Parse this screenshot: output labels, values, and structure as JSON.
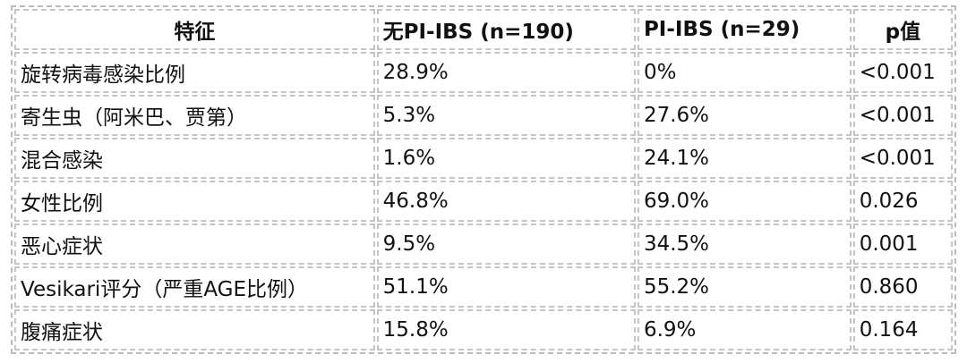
{
  "table": {
    "header": [
      "特征",
      "无PI-IBS (n=190)",
      "PI-IBS (n=29)",
      "p值"
    ],
    "rows": [
      [
        "旋转病毒感染比例",
        "28.9%",
        "0%",
        "<0.001"
      ],
      [
        "寄生虫（阿米巴、贾第）",
        "5.3%",
        "27.6%",
        "<0.001"
      ],
      [
        "混合感染",
        "1.6%",
        "24.1%",
        "<0.001"
      ],
      [
        "女性比例",
        "46.8%",
        "69.0%",
        "0.026"
      ],
      [
        "恶心症状",
        "9.5%",
        "34.5%",
        "0.001"
      ],
      [
        "Vesikari评分（严重AGE比例）",
        "51.1%",
        "55.2%",
        "0.860"
      ],
      [
        "腹痛症状",
        "15.8%",
        "6.9%",
        "0.164"
      ]
    ]
  }
}
